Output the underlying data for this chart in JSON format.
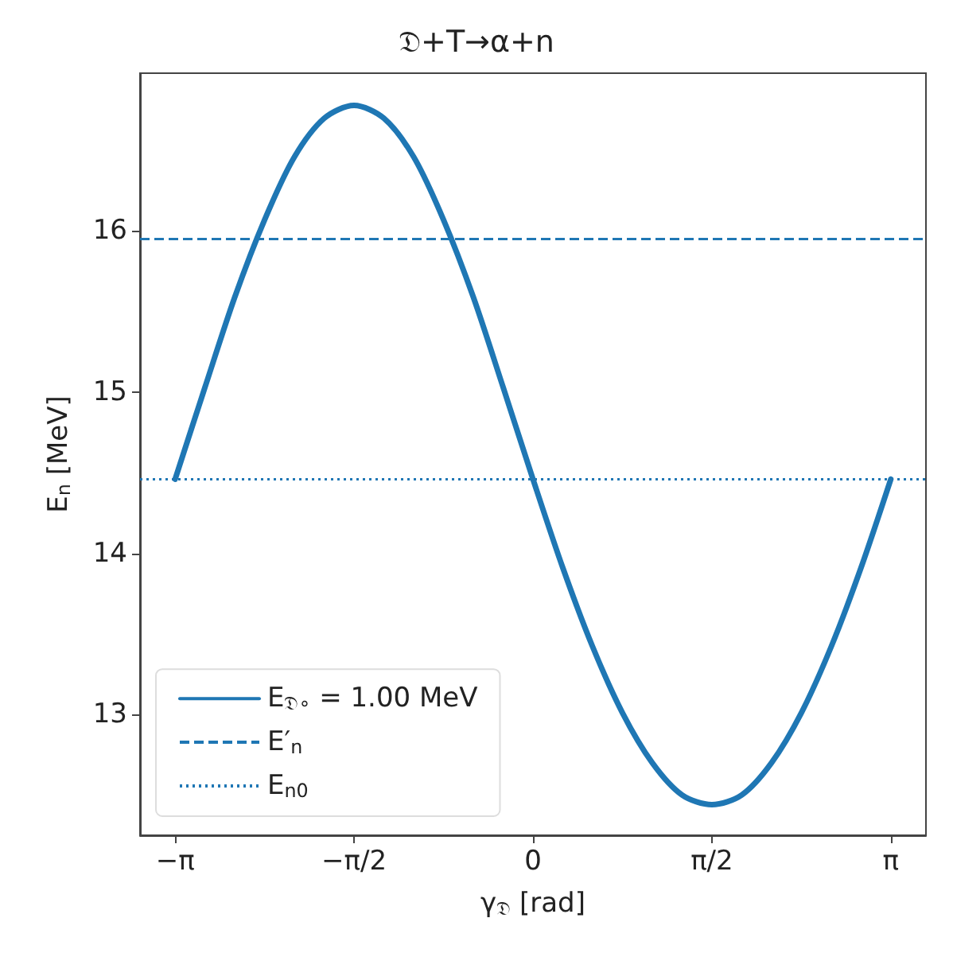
{
  "chart_data": {
    "type": "line",
    "title": "𝔇+T→α+n",
    "xlabel": "γ$_{𝔇}$ [rad]",
    "ylabel": "E$_{n}$ [MeV]",
    "x": [
      -3.1416,
      -2.8798,
      -2.618,
      -2.3562,
      -2.0944,
      -1.8326,
      -1.5708,
      -1.309,
      -1.0472,
      -0.7854,
      -0.5236,
      -0.2618,
      0,
      0.2618,
      0.5236,
      0.7854,
      1.0472,
      1.309,
      1.5708,
      1.8326,
      2.0944,
      2.3562,
      2.618,
      2.8798,
      3.1416
    ],
    "series": [
      {
        "name": "E$_{𝔇∘}$ = 1.00 MeV",
        "color": "#1f77b4",
        "values": [
          14.46,
          15.03,
          15.59,
          16.07,
          16.46,
          16.7,
          16.78,
          16.7,
          16.46,
          16.07,
          15.59,
          15.03,
          14.46,
          13.91,
          13.42,
          13.01,
          12.7,
          12.5,
          12.44,
          12.5,
          12.7,
          13.01,
          13.42,
          13.91,
          14.46
        ]
      }
    ],
    "ref_lines": [
      {
        "axis": "y",
        "value": 15.95,
        "label": "E′$_{n}$",
        "color": "#1f77b4",
        "line_style": "dashed"
      },
      {
        "axis": "y",
        "value": 14.46,
        "label": "E$_{n0}$",
        "color": "#1f77b4",
        "line_style": "dotted"
      }
    ],
    "xlim": [
      -3.45,
      3.45
    ],
    "xticks": [
      {
        "value": -3.1416,
        "label": "−π"
      },
      {
        "value": -1.5708,
        "label": "−π/2"
      },
      0,
      {
        "value": 1.5708,
        "label": "π/2"
      },
      {
        "value": 3.1416,
        "label": "π"
      }
    ],
    "ylim": [
      12.25,
      16.98
    ],
    "yticks": [
      13,
      14,
      15,
      16
    ],
    "legend": "bottom left",
    "grid": false,
    "marker": "none",
    "line_style": "solid"
  }
}
